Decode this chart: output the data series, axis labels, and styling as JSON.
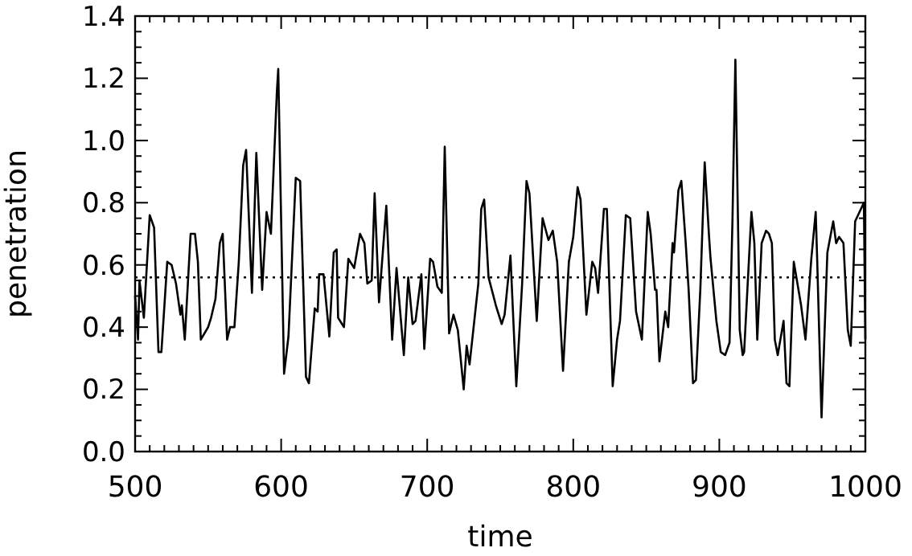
{
  "chart_data": {
    "type": "line",
    "xlabel": "time",
    "ylabel": "penetration",
    "xlim": [
      500,
      1000
    ],
    "ylim": [
      0,
      1.4
    ],
    "xticks": [
      500,
      {
        "value": 510,
        "label": null
      },
      {
        "value": 520,
        "label": null
      },
      {
        "value": 530,
        "label": null
      },
      {
        "value": 540,
        "label": null
      },
      {
        "value": 550,
        "label": null
      },
      {
        "value": 560,
        "label": null
      },
      {
        "value": 570,
        "label": null
      },
      {
        "value": 580,
        "label": null
      },
      {
        "value": 590,
        "label": null
      },
      600,
      {
        "value": 610,
        "label": null
      },
      {
        "value": 620,
        "label": null
      },
      {
        "value": 630,
        "label": null
      },
      {
        "value": 640,
        "label": null
      },
      {
        "value": 650,
        "label": null
      },
      {
        "value": 660,
        "label": null
      },
      {
        "value": 670,
        "label": null
      },
      {
        "value": 680,
        "label": null
      },
      {
        "value": 690,
        "label": null
      },
      700,
      {
        "value": 710,
        "label": null
      },
      {
        "value": 720,
        "label": null
      },
      {
        "value": 730,
        "label": null
      },
      {
        "value": 740,
        "label": null
      },
      {
        "value": 750,
        "label": null
      },
      {
        "value": 760,
        "label": null
      },
      {
        "value": 770,
        "label": null
      },
      {
        "value": 780,
        "label": null
      },
      {
        "value": 790,
        "label": null
      },
      800,
      {
        "value": 810,
        "label": null
      },
      {
        "value": 820,
        "label": null
      },
      {
        "value": 830,
        "label": null
      },
      {
        "value": 840,
        "label": null
      },
      {
        "value": 850,
        "label": null
      },
      {
        "value": 860,
        "label": null
      },
      {
        "value": 870,
        "label": null
      },
      {
        "value": 880,
        "label": null
      },
      {
        "value": 890,
        "label": null
      },
      900,
      {
        "value": 910,
        "label": null
      },
      {
        "value": 920,
        "label": null
      },
      {
        "value": 930,
        "label": null
      },
      {
        "value": 940,
        "label": null
      },
      {
        "value": 950,
        "label": null
      },
      {
        "value": 960,
        "label": null
      },
      {
        "value": 970,
        "label": null
      },
      {
        "value": 980,
        "label": null
      },
      {
        "value": 990,
        "label": null
      },
      1000
    ],
    "yticks": [
      {
        "value": 0,
        "label": "0.0"
      },
      {
        "value": 0.05,
        "label": null
      },
      {
        "value": 0.1,
        "label": null
      },
      {
        "value": 0.15,
        "label": null
      },
      0.2,
      {
        "value": 0.25,
        "label": null
      },
      {
        "value": 0.3,
        "label": null
      },
      {
        "value": 0.35,
        "label": null
      },
      0.4,
      {
        "value": 0.45,
        "label": null
      },
      {
        "value": 0.5,
        "label": null
      },
      {
        "value": 0.55,
        "label": null
      },
      0.6,
      {
        "value": 0.65,
        "label": null
      },
      {
        "value": 0.7,
        "label": null
      },
      {
        "value": 0.75,
        "label": null
      },
      0.8,
      {
        "value": 0.85,
        "label": null
      },
      {
        "value": 0.9,
        "label": null
      },
      {
        "value": 0.95,
        "label": null
      },
      {
        "value": 1,
        "label": "1.0"
      },
      {
        "value": 1.05,
        "label": null
      },
      {
        "value": 1.1,
        "label": null
      },
      {
        "value": 1.15,
        "label": null
      },
      1.2,
      {
        "value": 1.25,
        "label": null
      },
      {
        "value": 1.3,
        "label": null
      },
      {
        "value": 1.35,
        "label": null
      },
      1.4
    ],
    "grid": false,
    "marker": "none",
    "line_style": "solid",
    "ref_lines": [
      {
        "axis": "y",
        "value": 0.56,
        "line_style": "dotted",
        "color": "#000000"
      }
    ],
    "series": [
      {
        "color": "#000000",
        "x": [
          500,
          502,
          503,
          506,
          510,
          513,
          516,
          518,
          522,
          525,
          528,
          531,
          532,
          534,
          538,
          541,
          543,
          545,
          550,
          552,
          555,
          558,
          560,
          563,
          565,
          568,
          571,
          574,
          576,
          580,
          583,
          587,
          590,
          593,
          597,
          598,
          602,
          605,
          610,
          613,
          617,
          619,
          623,
          625,
          626,
          629,
          633,
          636,
          638,
          639,
          643,
          646,
          650,
          654,
          657,
          659,
          662,
          664,
          667,
          672,
          676,
          679,
          684,
          687,
          690,
          692,
          696,
          698,
          702,
          704,
          707,
          710,
          712,
          715,
          718,
          721,
          725,
          727,
          729,
          732,
          735,
          737,
          739,
          742,
          747,
          751,
          753,
          757,
          761,
          765,
          768,
          770,
          775,
          779,
          783,
          786,
          789,
          793,
          797,
          800,
          803,
          805,
          809,
          813,
          815,
          817,
          821,
          823,
          827,
          830,
          832,
          836,
          839,
          843,
          847,
          851,
          853,
          856,
          857,
          859,
          863,
          865,
          868,
          869,
          872,
          874,
          877,
          879,
          882,
          884,
          887,
          890,
          893,
          894,
          898,
          901,
          904,
          907,
          909,
          911,
          914,
          916,
          917,
          922,
          924,
          926,
          929,
          932,
          934,
          936,
          938,
          940,
          944,
          946,
          948,
          951,
          956,
          959,
          963,
          966,
          967,
          970,
          974,
          978,
          980,
          982,
          985,
          988,
          990,
          993,
          997,
          999,
          1000
        ],
        "values": [
          0.5,
          0.36,
          0.55,
          0.43,
          0.76,
          0.72,
          0.32,
          0.32,
          0.61,
          0.6,
          0.54,
          0.44,
          0.47,
          0.36,
          0.7,
          0.7,
          0.61,
          0.36,
          0.4,
          0.43,
          0.49,
          0.67,
          0.7,
          0.36,
          0.4,
          0.4,
          0.61,
          0.92,
          0.97,
          0.51,
          0.96,
          0.52,
          0.77,
          0.7,
          1.15,
          1.23,
          0.25,
          0.37,
          0.88,
          0.87,
          0.24,
          0.22,
          0.46,
          0.45,
          0.57,
          0.57,
          0.37,
          0.64,
          0.65,
          0.43,
          0.4,
          0.62,
          0.59,
          0.7,
          0.67,
          0.54,
          0.55,
          0.83,
          0.48,
          0.79,
          0.36,
          0.59,
          0.31,
          0.56,
          0.41,
          0.42,
          0.57,
          0.33,
          0.62,
          0.61,
          0.53,
          0.51,
          0.98,
          0.38,
          0.44,
          0.39,
          0.2,
          0.34,
          0.28,
          0.41,
          0.54,
          0.78,
          0.81,
          0.56,
          0.47,
          0.41,
          0.44,
          0.63,
          0.21,
          0.54,
          0.87,
          0.83,
          0.42,
          0.75,
          0.68,
          0.71,
          0.61,
          0.26,
          0.61,
          0.69,
          0.85,
          0.81,
          0.44,
          0.61,
          0.59,
          0.51,
          0.78,
          0.78,
          0.21,
          0.36,
          0.42,
          0.76,
          0.75,
          0.45,
          0.36,
          0.77,
          0.7,
          0.52,
          0.52,
          0.29,
          0.45,
          0.4,
          0.67,
          0.64,
          0.84,
          0.87,
          0.67,
          0.52,
          0.22,
          0.23,
          0.52,
          0.93,
          0.69,
          0.62,
          0.42,
          0.32,
          0.31,
          0.35,
          0.74,
          1.26,
          0.39,
          0.31,
          0.32,
          0.77,
          0.67,
          0.36,
          0.67,
          0.71,
          0.7,
          0.67,
          0.36,
          0.31,
          0.42,
          0.22,
          0.21,
          0.61,
          0.47,
          0.36,
          0.62,
          0.77,
          0.62,
          0.11,
          0.64,
          0.74,
          0.67,
          0.69,
          0.67,
          0.39,
          0.34,
          0.74,
          0.78,
          0.8,
          0.36
        ]
      }
    ]
  }
}
